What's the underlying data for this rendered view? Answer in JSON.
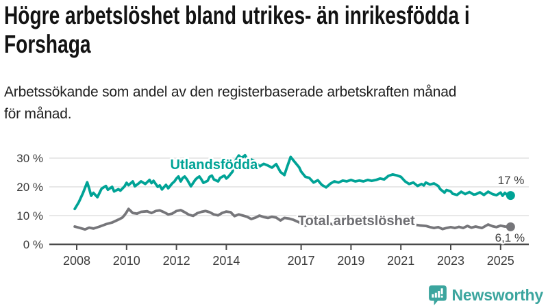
{
  "header": {
    "title": "Högre arbetslöshet bland utrikes- än inrikesfödda i\nForshaga",
    "subtitle": "Arbetssökande som andel av den registerbaserade arbetskraften månad\nför månad."
  },
  "footer": {
    "brand": "Newsworthy"
  },
  "colors": {
    "teal": "#00a396",
    "gray": "#76767a",
    "gray_label": "#6e6e72",
    "axis": "#4a4a4a",
    "grid": "#d9d9d9",
    "tick_text": "#3c3c3c",
    "value_text": "#3b3b3b",
    "logo": "#3ba59e"
  },
  "chart_data": {
    "type": "line",
    "title": "",
    "xlabel": "",
    "ylabel": "",
    "xlim": [
      2007.3,
      2026.2
    ],
    "ylim": [
      0,
      33
    ],
    "grid": "horizontal",
    "legend_position": "inline-labels",
    "x_ticks": [
      {
        "value": 2008,
        "label": "2008"
      },
      {
        "value": 2010,
        "label": "2010"
      },
      {
        "value": 2012,
        "label": "2012"
      },
      {
        "value": 2014,
        "label": "2014"
      },
      {
        "value": 2017,
        "label": "2017"
      },
      {
        "value": 2019,
        "label": "2019"
      },
      {
        "value": 2021,
        "label": "2021"
      },
      {
        "value": 2023,
        "label": "2023"
      },
      {
        "value": 2025,
        "label": "2025"
      }
    ],
    "y_ticks": [
      {
        "value": 0,
        "label": "0 %"
      },
      {
        "value": 10,
        "label": "10 %"
      },
      {
        "value": 20,
        "label": "20 %"
      },
      {
        "value": 30,
        "label": "30 %"
      }
    ],
    "series": [
      {
        "id": "utlandsfodda",
        "name": "Utlandsfödda",
        "color": "#00a396",
        "end_dot": true,
        "end_value": "17 %",
        "points": [
          [
            2007.92,
            12.3
          ],
          [
            2008.08,
            14.6
          ],
          [
            2008.25,
            17.8
          ],
          [
            2008.42,
            21.6
          ],
          [
            2008.5,
            19.4
          ],
          [
            2008.58,
            16.9
          ],
          [
            2008.67,
            17.9
          ],
          [
            2008.83,
            16.4
          ],
          [
            2009.0,
            19.4
          ],
          [
            2009.17,
            20.3
          ],
          [
            2009.25,
            19.0
          ],
          [
            2009.42,
            20.0
          ],
          [
            2009.5,
            18.4
          ],
          [
            2009.67,
            19.2
          ],
          [
            2009.75,
            18.7
          ],
          [
            2009.92,
            20.2
          ],
          [
            2010.0,
            21.4
          ],
          [
            2010.08,
            20.6
          ],
          [
            2010.25,
            21.9
          ],
          [
            2010.33,
            20.2
          ],
          [
            2010.5,
            21.3
          ],
          [
            2010.58,
            21.9
          ],
          [
            2010.75,
            21.0
          ],
          [
            2010.92,
            22.4
          ],
          [
            2011.0,
            21.3
          ],
          [
            2011.08,
            22.1
          ],
          [
            2011.25,
            20.0
          ],
          [
            2011.33,
            20.5
          ],
          [
            2011.42,
            19.1
          ],
          [
            2011.58,
            20.7
          ],
          [
            2011.67,
            19.5
          ],
          [
            2011.83,
            21.2
          ],
          [
            2011.92,
            21.9
          ],
          [
            2012.0,
            22.9
          ],
          [
            2012.08,
            23.6
          ],
          [
            2012.17,
            21.9
          ],
          [
            2012.25,
            23.1
          ],
          [
            2012.33,
            23.6
          ],
          [
            2012.42,
            22.6
          ],
          [
            2012.5,
            21.4
          ],
          [
            2012.58,
            20.2
          ],
          [
            2012.75,
            22.4
          ],
          [
            2012.83,
            23.1
          ],
          [
            2012.92,
            23.6
          ],
          [
            2013.0,
            22.6
          ],
          [
            2013.08,
            21.4
          ],
          [
            2013.25,
            22.1
          ],
          [
            2013.33,
            23.5
          ],
          [
            2013.42,
            23.9
          ],
          [
            2013.5,
            22.6
          ],
          [
            2013.67,
            21.9
          ],
          [
            2013.75,
            23.1
          ],
          [
            2013.92,
            23.9
          ],
          [
            2014.0,
            22.9
          ],
          [
            2014.08,
            23.5
          ],
          [
            2014.25,
            25.3
          ],
          [
            2014.33,
            28.6
          ],
          [
            2014.42,
            29.8
          ],
          [
            2014.5,
            30.9
          ],
          [
            2014.58,
            30.2
          ],
          [
            2014.67,
            30.4
          ],
          [
            2014.75,
            31.0
          ],
          [
            2014.92,
            28.5
          ],
          [
            2015.0,
            29.5
          ],
          [
            2015.17,
            28.8
          ],
          [
            2015.33,
            27.1
          ],
          [
            2015.5,
            28.0
          ],
          [
            2015.67,
            27.4
          ],
          [
            2015.83,
            26.7
          ],
          [
            2016.0,
            27.9
          ],
          [
            2016.17,
            25.2
          ],
          [
            2016.33,
            24.1
          ],
          [
            2016.42,
            26.5
          ],
          [
            2016.58,
            30.4
          ],
          [
            2016.75,
            28.6
          ],
          [
            2016.92,
            26.8
          ],
          [
            2017.0,
            25.3
          ],
          [
            2017.17,
            23.5
          ],
          [
            2017.33,
            23.1
          ],
          [
            2017.5,
            21.5
          ],
          [
            2017.67,
            22.3
          ],
          [
            2017.83,
            20.7
          ],
          [
            2018.0,
            19.8
          ],
          [
            2018.17,
            21.1
          ],
          [
            2018.33,
            21.9
          ],
          [
            2018.5,
            21.5
          ],
          [
            2018.67,
            22.2
          ],
          [
            2018.83,
            21.9
          ],
          [
            2019.0,
            22.4
          ],
          [
            2019.17,
            21.9
          ],
          [
            2019.33,
            22.2
          ],
          [
            2019.5,
            21.9
          ],
          [
            2019.67,
            22.4
          ],
          [
            2019.83,
            22.1
          ],
          [
            2020.0,
            22.4
          ],
          [
            2020.17,
            22.9
          ],
          [
            2020.33,
            22.6
          ],
          [
            2020.5,
            23.8
          ],
          [
            2020.67,
            24.3
          ],
          [
            2020.83,
            24.0
          ],
          [
            2021.0,
            23.5
          ],
          [
            2021.17,
            21.9
          ],
          [
            2021.33,
            21.0
          ],
          [
            2021.5,
            21.5
          ],
          [
            2021.67,
            20.3
          ],
          [
            2021.83,
            21.0
          ],
          [
            2021.92,
            20.5
          ],
          [
            2022.0,
            21.5
          ],
          [
            2022.17,
            20.8
          ],
          [
            2022.33,
            21.2
          ],
          [
            2022.5,
            20.3
          ],
          [
            2022.58,
            19.2
          ],
          [
            2022.75,
            18.0
          ],
          [
            2022.83,
            18.9
          ],
          [
            2023.0,
            18.4
          ],
          [
            2023.08,
            17.6
          ],
          [
            2023.25,
            17.2
          ],
          [
            2023.42,
            18.3
          ],
          [
            2023.58,
            17.5
          ],
          [
            2023.75,
            18.2
          ],
          [
            2023.92,
            17.3
          ],
          [
            2024.0,
            17.4
          ],
          [
            2024.17,
            18.1
          ],
          [
            2024.33,
            17.2
          ],
          [
            2024.5,
            18.3
          ],
          [
            2024.67,
            17.5
          ],
          [
            2024.83,
            17.1
          ],
          [
            2025.0,
            18.0
          ],
          [
            2025.08,
            16.9
          ],
          [
            2025.17,
            17.9
          ],
          [
            2025.25,
            17.3
          ],
          [
            2025.4,
            17.0
          ]
        ]
      },
      {
        "id": "total",
        "name": "Total arbetslöshet",
        "color": "#76767a",
        "end_dot": true,
        "end_value": "6,1 %",
        "points": [
          [
            2007.92,
            6.2
          ],
          [
            2008.08,
            5.8
          ],
          [
            2008.25,
            5.4
          ],
          [
            2008.33,
            5.2
          ],
          [
            2008.5,
            5.8
          ],
          [
            2008.67,
            5.5
          ],
          [
            2008.92,
            6.2
          ],
          [
            2009.17,
            7.0
          ],
          [
            2009.42,
            7.6
          ],
          [
            2009.67,
            8.6
          ],
          [
            2009.83,
            9.3
          ],
          [
            2009.92,
            10.2
          ],
          [
            2010.0,
            11.2
          ],
          [
            2010.08,
            12.3
          ],
          [
            2010.25,
            10.9
          ],
          [
            2010.42,
            10.7
          ],
          [
            2010.58,
            11.3
          ],
          [
            2010.83,
            11.5
          ],
          [
            2011.0,
            10.9
          ],
          [
            2011.17,
            11.6
          ],
          [
            2011.33,
            11.8
          ],
          [
            2011.5,
            11.2
          ],
          [
            2011.67,
            10.4
          ],
          [
            2011.83,
            10.7
          ],
          [
            2012.0,
            11.6
          ],
          [
            2012.17,
            11.9
          ],
          [
            2012.33,
            11.2
          ],
          [
            2012.5,
            10.3
          ],
          [
            2012.67,
            9.9
          ],
          [
            2012.83,
            10.8
          ],
          [
            2013.0,
            11.3
          ],
          [
            2013.17,
            11.6
          ],
          [
            2013.33,
            11.2
          ],
          [
            2013.5,
            10.4
          ],
          [
            2013.67,
            10.1
          ],
          [
            2013.83,
            10.9
          ],
          [
            2014.0,
            11.4
          ],
          [
            2014.17,
            11.2
          ],
          [
            2014.33,
            9.8
          ],
          [
            2014.5,
            10.4
          ],
          [
            2014.67,
            10.0
          ],
          [
            2014.83,
            9.6
          ],
          [
            2015.0,
            8.8
          ],
          [
            2015.17,
            9.3
          ],
          [
            2015.33,
            10.0
          ],
          [
            2015.5,
            9.5
          ],
          [
            2015.67,
            9.2
          ],
          [
            2015.83,
            9.6
          ],
          [
            2016.0,
            9.3
          ],
          [
            2016.17,
            8.3
          ],
          [
            2016.33,
            9.2
          ],
          [
            2016.5,
            9.0
          ],
          [
            2016.67,
            8.6
          ],
          [
            2016.83,
            8.0
          ],
          [
            2017.0,
            7.3
          ],
          [
            2017.17,
            6.5
          ],
          [
            2017.33,
            6.9
          ],
          [
            2017.5,
            7.2
          ],
          [
            2017.67,
            6.8
          ],
          [
            2017.83,
            7.1
          ],
          [
            2018.0,
            7.4
          ],
          [
            2018.25,
            7.0
          ],
          [
            2018.5,
            6.7
          ],
          [
            2018.75,
            7.0
          ],
          [
            2019.0,
            7.3
          ],
          [
            2019.25,
            7.0
          ],
          [
            2019.5,
            6.8
          ],
          [
            2019.75,
            7.2
          ],
          [
            2020.0,
            7.5
          ],
          [
            2020.25,
            8.4
          ],
          [
            2020.5,
            8.2
          ],
          [
            2020.75,
            7.9
          ],
          [
            2021.0,
            7.7
          ],
          [
            2021.25,
            7.3
          ],
          [
            2021.5,
            6.9
          ],
          [
            2021.75,
            6.6
          ],
          [
            2022.0,
            6.4
          ],
          [
            2022.17,
            6.0
          ],
          [
            2022.33,
            5.7
          ],
          [
            2022.5,
            6.0
          ],
          [
            2022.67,
            5.3
          ],
          [
            2022.83,
            5.7
          ],
          [
            2023.0,
            6.0
          ],
          [
            2023.17,
            5.7
          ],
          [
            2023.33,
            6.1
          ],
          [
            2023.5,
            5.7
          ],
          [
            2023.67,
            6.4
          ],
          [
            2023.83,
            5.8
          ],
          [
            2024.0,
            6.2
          ],
          [
            2024.25,
            5.7
          ],
          [
            2024.5,
            6.9
          ],
          [
            2024.67,
            6.3
          ],
          [
            2024.83,
            6.0
          ],
          [
            2025.0,
            6.5
          ],
          [
            2025.17,
            6.2
          ],
          [
            2025.4,
            6.1
          ]
        ]
      }
    ],
    "annotations": [
      {
        "id": "series-label-utlandsfodda",
        "text": "Utlandsfödda",
        "x": 2011.75,
        "y": 26.2,
        "color": "#00a396",
        "weight": "bold",
        "size": 20,
        "anchor": "start",
        "halo": 5
      },
      {
        "id": "series-label-total",
        "text": "Total arbetslöshet",
        "x": 2016.87,
        "y": 6.7,
        "color": "#6e6e72",
        "weight": "bold",
        "size": 20,
        "anchor": "start",
        "halo": 5
      },
      {
        "id": "value-label-utlandsfodda",
        "text": "17 %",
        "x": 2025.95,
        "y": 21.0,
        "color": "#3b3b3b",
        "weight": "normal",
        "size": 17,
        "anchor": "end",
        "halo": 4
      },
      {
        "id": "value-label-total",
        "text": "6,1 %",
        "x": 2025.97,
        "y": 0.95,
        "color": "#3b3b3b",
        "weight": "normal",
        "size": 17,
        "anchor": "end",
        "halo": 4
      }
    ]
  }
}
